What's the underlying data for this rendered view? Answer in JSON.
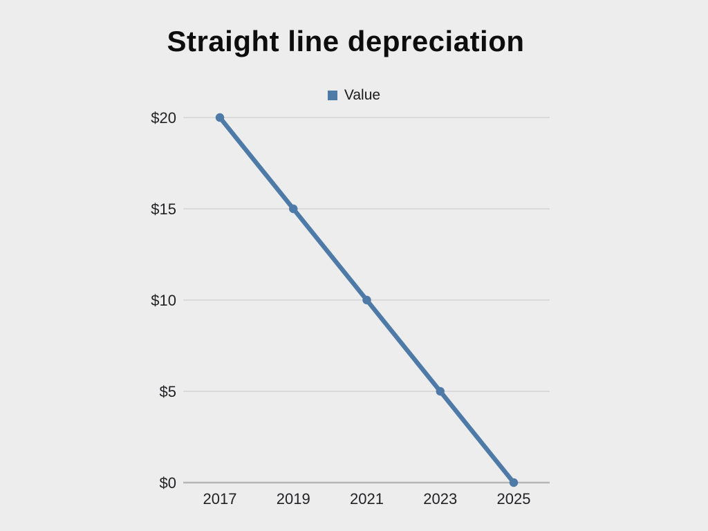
{
  "chart": {
    "title": "Straight line depreciation",
    "legend_label": "Value"
  },
  "chart_data": {
    "type": "line",
    "title": "Straight line depreciation",
    "xlabel": "",
    "ylabel": "",
    "x": [
      2017,
      2019,
      2021,
      2023,
      2025
    ],
    "xtick_labels": [
      "2017",
      "2019",
      "2021",
      "2023",
      "2025"
    ],
    "series": [
      {
        "name": "Value",
        "values": [
          20,
          15,
          10,
          5,
          0
        ]
      }
    ],
    "ylim": [
      0,
      20
    ],
    "yticks": [
      0,
      5,
      10,
      15,
      20
    ],
    "ytick_labels": [
      "$0",
      "$5",
      "$10",
      "$15",
      "$20"
    ],
    "grid": true,
    "legend_position": "top"
  },
  "colors": {
    "background": "#ededee",
    "accent_line": "#4e7aa8",
    "gridline": "#d3d3d5",
    "axis_line": "#b5b5b8",
    "title_text": "#0d0d0d",
    "tick_text": "#222225"
  }
}
